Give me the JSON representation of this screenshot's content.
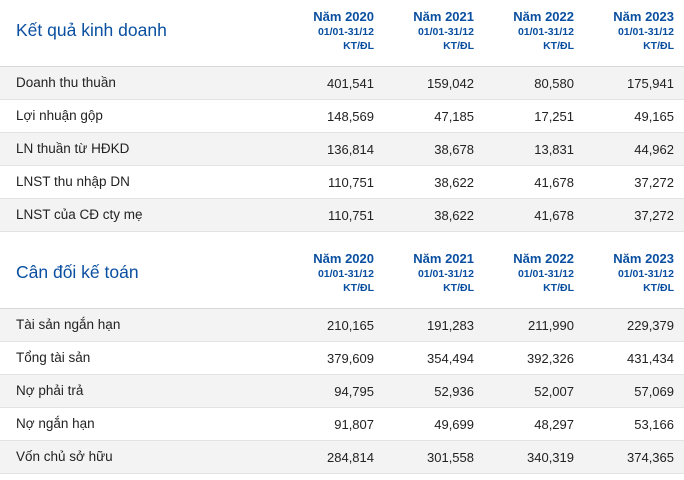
{
  "columns": [
    {
      "year": "Năm 2020",
      "period": "01/01-31/12",
      "unit": "KT/ĐL"
    },
    {
      "year": "Năm 2021",
      "period": "01/01-31/12",
      "unit": "KT/ĐL"
    },
    {
      "year": "Năm 2022",
      "period": "01/01-31/12",
      "unit": "KT/ĐL"
    },
    {
      "year": "Năm 2023",
      "period": "01/01-31/12",
      "unit": "KT/ĐL"
    }
  ],
  "sections": [
    {
      "title": "Kết quả kinh doanh",
      "rows": [
        {
          "label": "Doanh thu thuần",
          "values": [
            "401,541",
            "159,042",
            "80,580",
            "175,941"
          ]
        },
        {
          "label": "Lợi nhuận gộp",
          "values": [
            "148,569",
            "47,185",
            "17,251",
            "49,165"
          ]
        },
        {
          "label": "LN thuần từ HĐKD",
          "values": [
            "136,814",
            "38,678",
            "13,831",
            "44,962"
          ]
        },
        {
          "label": "LNST thu nhập DN",
          "values": [
            "110,751",
            "38,622",
            "41,678",
            "37,272"
          ]
        },
        {
          "label": "LNST của CĐ cty mẹ",
          "values": [
            "110,751",
            "38,622",
            "41,678",
            "37,272"
          ]
        }
      ]
    },
    {
      "title": "Cân đối kế toán",
      "rows": [
        {
          "label": "Tài sản ngắn hạn",
          "values": [
            "210,165",
            "191,283",
            "211,990",
            "229,379"
          ]
        },
        {
          "label": "Tổng tài sản",
          "values": [
            "379,609",
            "354,494",
            "392,326",
            "431,434"
          ]
        },
        {
          "label": "Nợ phải trả",
          "values": [
            "94,795",
            "52,936",
            "52,007",
            "57,069"
          ]
        },
        {
          "label": "Nợ ngắn hạn",
          "values": [
            "91,807",
            "49,699",
            "48,297",
            "53,166"
          ]
        },
        {
          "label": "Vốn chủ sở hữu",
          "values": [
            "284,814",
            "301,558",
            "340,319",
            "374,365"
          ]
        }
      ]
    }
  ]
}
